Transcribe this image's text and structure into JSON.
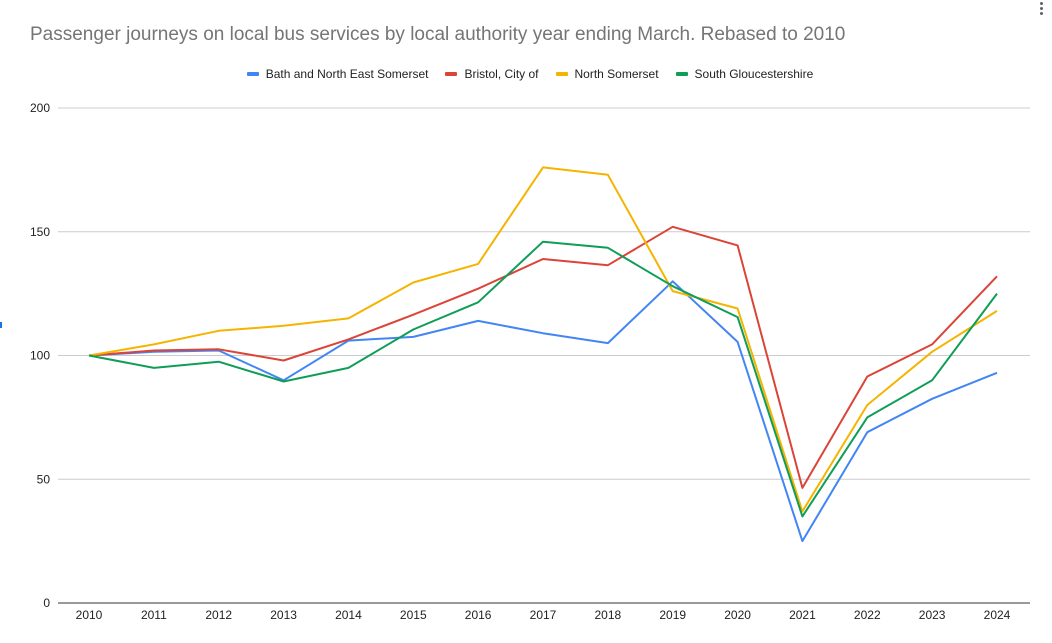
{
  "chart_data": {
    "type": "line",
    "title": "Passenger journeys on local bus services by local authority  year ending March.  Rebased to 2010",
    "xlabel": "",
    "ylabel": "",
    "categories": [
      "2010",
      "2011",
      "2012",
      "2013",
      "2014",
      "2015",
      "2016",
      "2017",
      "2018",
      "2019",
      "2020",
      "2021",
      "2022",
      "2023",
      "2024"
    ],
    "ylim": [
      0,
      200
    ],
    "yticks": [
      "0",
      "50",
      "100",
      "150",
      "200"
    ],
    "grid": true,
    "legend_position": "top",
    "series": [
      {
        "name": "Bath and North East Somerset",
        "color": "#4285F4",
        "values": [
          100,
          101.5,
          102,
          90,
          106,
          107.5,
          114,
          109,
          105,
          130,
          105.5,
          25,
          69,
          82.5,
          93
        ]
      },
      {
        "name": "Bristol, City of",
        "color": "#DB4437",
        "values": [
          100,
          102,
          102.5,
          98,
          106.5,
          116.5,
          127,
          139,
          136.5,
          152,
          144.5,
          46.5,
          91.5,
          104.5,
          132
        ]
      },
      {
        "name": "North Somerset",
        "color": "#F4B400",
        "values": [
          100,
          104.5,
          110,
          112,
          115,
          129.5,
          137,
          176,
          173,
          126,
          119,
          37,
          80,
          101.5,
          118
        ]
      },
      {
        "name": "South Gloucestershire",
        "color": "#0F9D58",
        "values": [
          100,
          95,
          97.5,
          89.5,
          95,
          110.5,
          121.5,
          146,
          143.5,
          128,
          115.5,
          35,
          75,
          90,
          125
        ]
      }
    ]
  }
}
